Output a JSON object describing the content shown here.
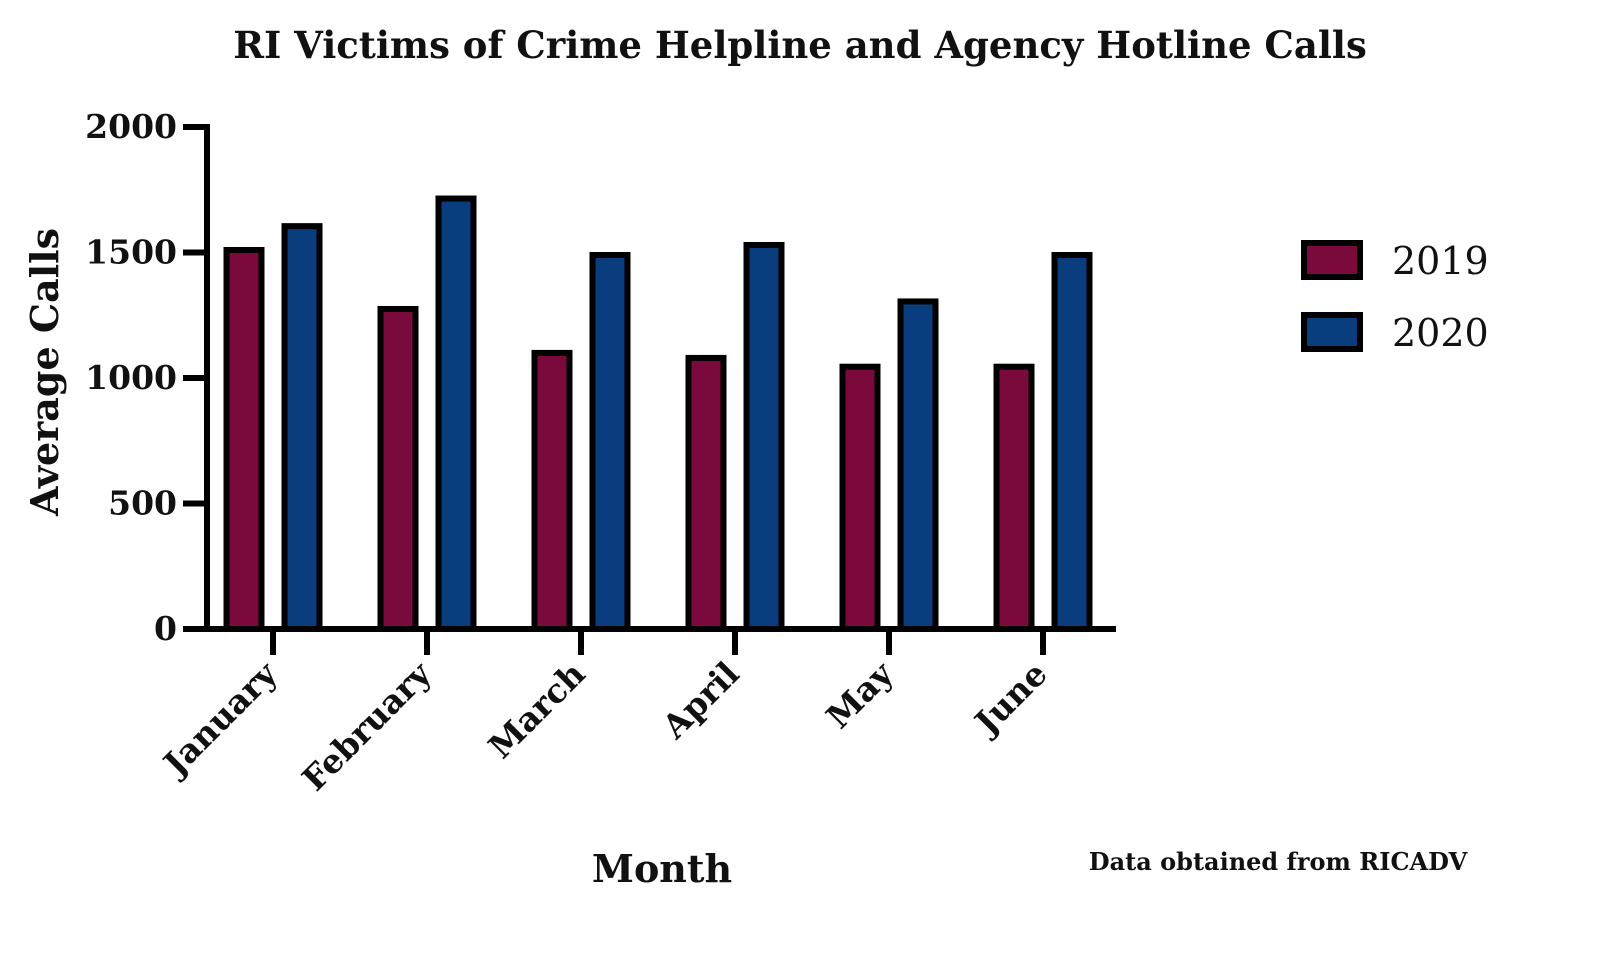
{
  "chart_data": {
    "type": "bar",
    "title": "RI Victims of Crime Helpline and Agency Hotline Calls",
    "xlabel": "Month",
    "ylabel": "Average Calls",
    "categories": [
      "January",
      "February",
      "March",
      "April",
      "May",
      "June"
    ],
    "series": [
      {
        "name": "2019",
        "color": "#7a0a3c",
        "values": [
          1510,
          1275,
          1100,
          1080,
          1045,
          1045
        ]
      },
      {
        "name": "2020",
        "color": "#0a3d7e",
        "values": [
          1605,
          1715,
          1490,
          1530,
          1305,
          1490
        ]
      }
    ],
    "yticks": [
      "0",
      "500",
      "1000",
      "1500",
      "2000"
    ],
    "ylim": [
      0,
      2000
    ],
    "grid": false,
    "legend_position": "right",
    "note": "Data obtained from RICADV"
  }
}
